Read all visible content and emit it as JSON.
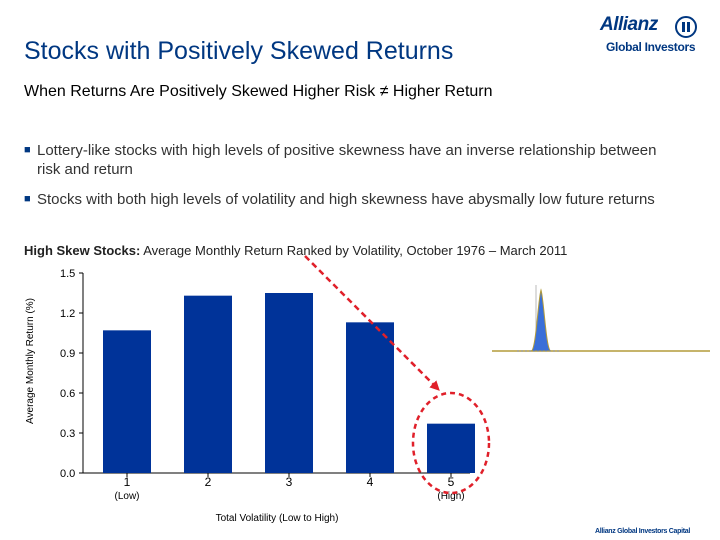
{
  "header": {
    "title": "Stocks with Positively Skewed Returns",
    "subtitle": "When Returns Are Positively Skewed Higher Risk ≠ Higher Return"
  },
  "logo": {
    "name": "Allianz",
    "sub": "Global Investors"
  },
  "bullets": [
    "Lottery-like stocks with high levels of positive skewness have an inverse relationship between risk and return",
    "Stocks with both high levels of volatility and high skewness have abysmally low future returns"
  ],
  "chart_caption": {
    "bold": "High Skew Stocks:",
    "rest": " Average Monthly Return Ranked by Volatility, October 1976 – March 2011"
  },
  "chart_data": {
    "type": "bar",
    "title": "High Skew Stocks: Average Monthly Return Ranked by Volatility, October 1976 – March 2011",
    "categories": [
      "1",
      "2",
      "3",
      "4",
      "5"
    ],
    "category_sublabels": [
      "(Low)",
      "",
      "",
      "",
      "(High)"
    ],
    "values": [
      1.07,
      1.33,
      1.35,
      1.13,
      0.37
    ],
    "xlabel": "Total Volatility (Low to High)",
    "ylabel": "Average Monthly Return (%)",
    "ylim": [
      0,
      1.5
    ],
    "yticks": [
      "0.0",
      "0.3",
      "0.6",
      "0.9",
      "1.2",
      "1.5"
    ],
    "bar_color": "#003399",
    "annotation_color": "#e0202a",
    "annotation": "dashed downward trend arrow with highlighted quintile 5"
  },
  "footer": "Allianz Global Investors Capital"
}
